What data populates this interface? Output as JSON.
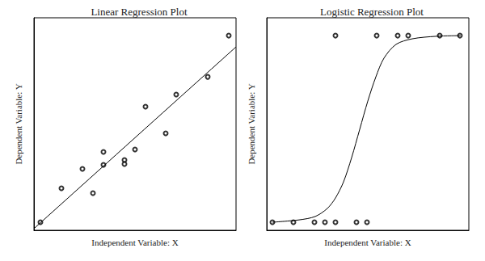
{
  "chart_data": [
    {
      "type": "scatter",
      "title": "Linear Regression Plot",
      "x_label": "Independent Variable: X",
      "y_label": "Dependent Variable: Y",
      "xlim": [
        0,
        10
      ],
      "ylim": [
        0,
        10
      ],
      "tick_labels": false,
      "grid": false,
      "series": [
        {
          "type": "scatter",
          "marker": "open_circle",
          "color": "#000000",
          "x": [
            0.32,
            1.36,
            2.4,
            2.92,
            3.44,
            3.44,
            4.48,
            4.48,
            5.0,
            5.52,
            6.52,
            7.04,
            8.6,
            9.64
          ],
          "values": [
            0.38,
            1.98,
            2.89,
            1.75,
            3.69,
            3.08,
            3.31,
            3.12,
            3.8,
            5.82,
            4.56,
            6.39,
            7.22,
            9.16
          ]
        },
        {
          "type": "line",
          "line_style": "solid",
          "color": "#000000",
          "x": [
            0,
            10
          ],
          "values": [
            0.08,
            8.63
          ]
        }
      ]
    },
    {
      "type": "scatter",
      "title": "Logistic Regression Plot",
      "x_label": "Independent Variable: X",
      "y_label": "Dependent Variable: Y",
      "xlim": [
        0,
        10
      ],
      "ylim": [
        0,
        10
      ],
      "tick_labels": false,
      "grid": false,
      "series": [
        {
          "type": "scatter",
          "marker": "open_circle",
          "color": "#000000",
          "x": [
            0.28,
            1.32,
            2.36,
            2.88,
            3.4,
            4.44,
            4.96,
            3.4,
            5.44,
            6.48,
            7.0,
            8.56,
            9.56
          ],
          "values": [
            0.38,
            0.38,
            0.38,
            0.38,
            0.38,
            0.38,
            0.38,
            9.16,
            9.16,
            9.16,
            9.16,
            9.16,
            9.16
          ]
        },
        {
          "type": "line",
          "line_style": "solid",
          "color": "#000000",
          "x": [
            0.28,
            1.6,
            2.4,
            3.0,
            3.4,
            3.8,
            4.2,
            4.6,
            5.0,
            5.4,
            5.8,
            6.4,
            7.2,
            8.4,
            9.6
          ],
          "values": [
            0.38,
            0.49,
            0.65,
            1.03,
            1.52,
            2.28,
            3.42,
            4.75,
            6.08,
            7.22,
            8.1,
            8.75,
            9.01,
            9.13,
            9.16
          ]
        }
      ]
    }
  ]
}
